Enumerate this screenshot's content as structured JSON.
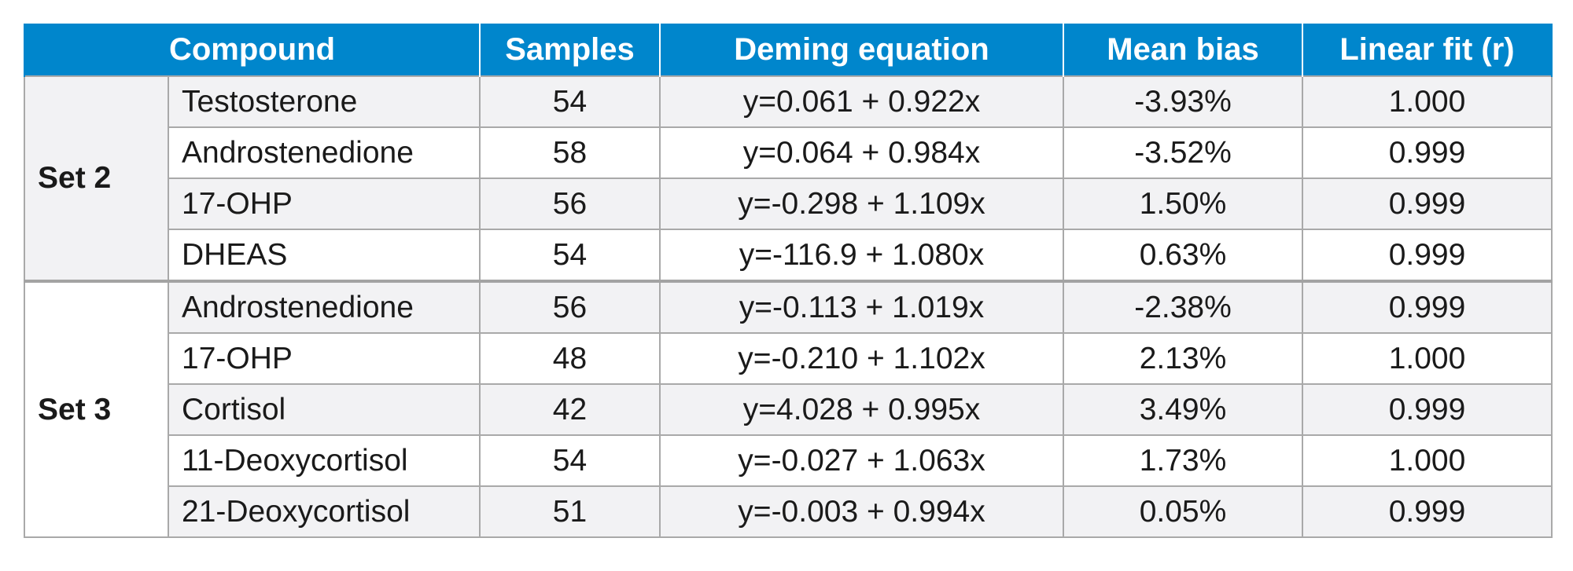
{
  "table": {
    "headers": {
      "compound": "Compound",
      "samples": "Samples",
      "deming": "Deming equation",
      "bias": "Mean bias",
      "fit": "Linear fit (r)"
    },
    "groups": [
      {
        "label": "Set 2",
        "rows": [
          {
            "compound": "Testosterone",
            "samples": "54",
            "deming": "y=0.061 + 0.922x",
            "bias": "-3.93%",
            "fit": "1.000"
          },
          {
            "compound": "Androstenedione",
            "samples": "58",
            "deming": "y=0.064 + 0.984x",
            "bias": "-3.52%",
            "fit": "0.999"
          },
          {
            "compound": "17-OHP",
            "samples": "56",
            "deming": "y=-0.298 + 1.109x",
            "bias": "1.50%",
            "fit": "0.999"
          },
          {
            "compound": "DHEAS",
            "samples": "54",
            "deming": "y=-116.9 + 1.080x",
            "bias": "0.63%",
            "fit": "0.999"
          }
        ]
      },
      {
        "label": "Set 3",
        "rows": [
          {
            "compound": "Androstenedione",
            "samples": "56",
            "deming": "y=-0.113 + 1.019x",
            "bias": "-2.38%",
            "fit": "0.999"
          },
          {
            "compound": "17-OHP",
            "samples": "48",
            "deming": "y=-0.210 + 1.102x",
            "bias": "2.13%",
            "fit": "1.000"
          },
          {
            "compound": "Cortisol",
            "samples": "42",
            "deming": "y=4.028 + 0.995x",
            "bias": "3.49%",
            "fit": "0.999"
          },
          {
            "compound": "11-Deoxycortisol",
            "samples": "54",
            "deming": "y=-0.027 + 1.063x",
            "bias": "1.73%",
            "fit": "1.000"
          },
          {
            "compound": "21-Deoxycortisol",
            "samples": "51",
            "deming": "y=-0.003 + 0.994x",
            "bias": "0.05%",
            "fit": "0.999"
          }
        ]
      }
    ]
  },
  "colors": {
    "header_bg": "#0086cc",
    "header_text": "#ffffff",
    "shaded_row": "#f2f2f4",
    "grid": "#a9a9a9"
  }
}
